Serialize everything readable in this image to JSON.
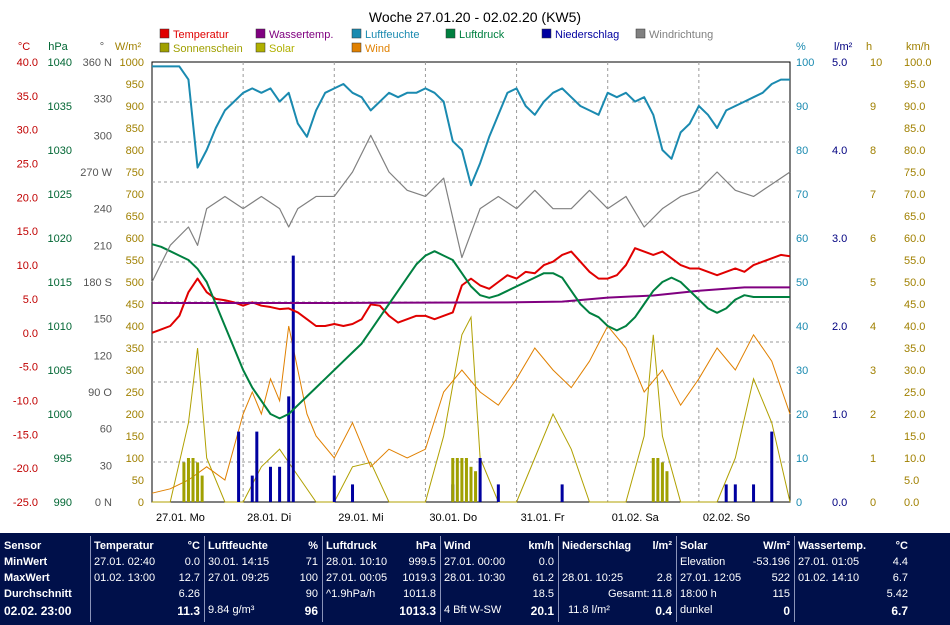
{
  "chart_data": {
    "type": "line",
    "title": "Woche 27.01.20 - 02.02.20 (KW5)",
    "x_labels": [
      "27.01. Mo",
      "28.01. Di",
      "29.01. Mi",
      "30.01. Do",
      "31.01. Fr",
      "01.02. Sa",
      "02.02. So"
    ],
    "grid": true,
    "axes": [
      {
        "id": "temp",
        "unit": "°C",
        "color": "#c00000",
        "range": [
          -25,
          40
        ],
        "ticks": [
          "40.0",
          "35.0",
          "30.0",
          "25.0",
          "20.0",
          "15.0",
          "10.0",
          "5.0",
          "0.0",
          "-5.0",
          "-10.0",
          "-15.0",
          "-20.0",
          "-25.0"
        ]
      },
      {
        "id": "press",
        "unit": "hPa",
        "color": "#006633",
        "range": [
          990,
          1040
        ],
        "ticks": [
          "1040",
          "1035",
          "1030",
          "1025",
          "1020",
          "1015",
          "1010",
          "1005",
          "1000",
          "995",
          "990"
        ]
      },
      {
        "id": "dir",
        "unit": "°",
        "color": "#555555",
        "range": [
          0,
          360
        ],
        "ticks": [
          "360 N",
          "330",
          "300",
          "270 W",
          "240",
          "210",
          "180 S",
          "150",
          "120",
          "90 O",
          "60",
          "30",
          "0 N"
        ]
      },
      {
        "id": "rad",
        "unit": "W/m²",
        "color": "#a08000",
        "range": [
          0,
          1000
        ],
        "ticks": [
          "1000",
          "950",
          "900",
          "850",
          "800",
          "750",
          "700",
          "650",
          "600",
          "550",
          "500",
          "450",
          "400",
          "350",
          "300",
          "250",
          "200",
          "150",
          "100",
          "50",
          "0"
        ]
      },
      {
        "id": "hum",
        "unit": "%",
        "color": "#1a8ab0",
        "range": [
          0,
          100
        ],
        "ticks": [
          "100",
          "90",
          "80",
          "70",
          "60",
          "50",
          "40",
          "30",
          "20",
          "10",
          "0"
        ]
      },
      {
        "id": "rain",
        "unit": "l/m²",
        "color": "#000080",
        "range": [
          0,
          5
        ],
        "ticks": [
          "5.0",
          "4.0",
          "3.0",
          "2.0",
          "1.0",
          "0.0"
        ]
      },
      {
        "id": "sun",
        "unit": "h",
        "color": "#a08000",
        "range": [
          0,
          10
        ],
        "ticks": [
          "10",
          "9",
          "8",
          "7",
          "6",
          "5",
          "4",
          "3",
          "2",
          "1",
          "0"
        ]
      },
      {
        "id": "wind",
        "unit": "km/h",
        "color": "#a08000",
        "range": [
          0,
          100
        ],
        "ticks": [
          "100.0",
          "95.0",
          "90.0",
          "85.0",
          "80.0",
          "75.0",
          "70.0",
          "65.0",
          "60.0",
          "55.0",
          "50.0",
          "45.0",
          "40.0",
          "35.0",
          "30.0",
          "25.0",
          "20.0",
          "15.0",
          "10.0",
          "5.0",
          "0.0"
        ]
      }
    ],
    "legend": [
      {
        "name": "Temperatur",
        "color": "#e00000"
      },
      {
        "name": "Wassertemp.",
        "color": "#800080"
      },
      {
        "name": "Luftfeuchte",
        "color": "#1a8ab0"
      },
      {
        "name": "Luftdruck",
        "color": "#008040"
      },
      {
        "name": "Niederschlag",
        "color": "#0000a0"
      },
      {
        "name": "Windrichtung",
        "color": "#808080"
      },
      {
        "name": "Sonnenschein",
        "color": "#a0a000"
      },
      {
        "name": "Solar",
        "color": "#b0b000"
      },
      {
        "name": "Wind",
        "color": "#e08000"
      }
    ],
    "series": [
      {
        "name": "Temperatur",
        "axis": "temp",
        "color": "#e00000",
        "x": [
          0,
          0.1,
          0.2,
          0.3,
          0.4,
          0.5,
          0.6,
          0.7,
          0.8,
          0.9,
          1.0,
          1.1,
          1.2,
          1.3,
          1.4,
          1.5,
          1.6,
          1.7,
          1.8,
          1.9,
          2.0,
          2.1,
          2.2,
          2.3,
          2.4,
          2.5,
          2.6,
          2.7,
          2.8,
          2.9,
          3.0,
          3.1,
          3.2,
          3.3,
          3.4,
          3.5,
          3.6,
          3.7,
          3.8,
          3.9,
          4.0,
          4.1,
          4.2,
          4.3,
          4.4,
          4.5,
          4.6,
          4.7,
          4.8,
          4.9,
          5.0,
          5.1,
          5.2,
          5.3,
          5.4,
          5.5,
          5.6,
          5.7,
          5.8,
          5.9,
          6.0,
          6.1,
          6.2,
          6.3,
          6.4,
          6.5,
          6.6,
          6.7,
          6.8,
          6.9,
          7.0
        ],
        "y": [
          0.0,
          0.5,
          1.0,
          2.5,
          6.0,
          8.0,
          6.0,
          5.0,
          4.8,
          4.5,
          4.0,
          4.5,
          4.0,
          3.8,
          3.5,
          3.6,
          3.0,
          2.0,
          1.0,
          1.0,
          1.3,
          1.0,
          1.3,
          2.0,
          4.2,
          4.0,
          2.5,
          1.5,
          2.0,
          2.5,
          2.5,
          2.0,
          2.5,
          3.0,
          7.0,
          8.0,
          7.0,
          6.5,
          7.5,
          8.5,
          8.0,
          9.0,
          8.8,
          10.0,
          10.5,
          11.5,
          12.0,
          10.5,
          9.0,
          8.0,
          8.0,
          8.5,
          10.0,
          12.5,
          12.0,
          11.5,
          12.0,
          11.0,
          10.0,
          9.5,
          9.5,
          9.0,
          8.5,
          9.0,
          9.5,
          9.0,
          10.0,
          10.5,
          11.0,
          11.5,
          11.3
        ]
      },
      {
        "name": "Wassertemp.",
        "axis": "temp",
        "color": "#800080",
        "x": [
          0,
          2.0,
          4.0,
          4.5,
          5.0,
          5.5,
          6.0,
          6.5,
          7.0
        ],
        "y": [
          4.4,
          4.4,
          4.5,
          4.6,
          5.2,
          5.5,
          6.2,
          6.7,
          6.7
        ]
      },
      {
        "name": "Luftfeuchte",
        "axis": "hum",
        "color": "#1a8ab0",
        "x": [
          0,
          0.1,
          0.2,
          0.3,
          0.4,
          0.5,
          0.6,
          0.7,
          0.8,
          0.9,
          1.0,
          1.1,
          1.2,
          1.3,
          1.4,
          1.5,
          1.6,
          1.7,
          1.8,
          1.9,
          2.0,
          2.1,
          2.2,
          2.3,
          2.4,
          2.5,
          2.6,
          2.7,
          2.8,
          2.9,
          3.0,
          3.1,
          3.2,
          3.3,
          3.4,
          3.5,
          3.6,
          3.7,
          3.8,
          3.9,
          4.0,
          4.1,
          4.2,
          4.3,
          4.4,
          4.5,
          4.6,
          4.7,
          4.8,
          4.9,
          5.0,
          5.1,
          5.2,
          5.3,
          5.4,
          5.5,
          5.6,
          5.7,
          5.8,
          5.9,
          6.0,
          6.1,
          6.2,
          6.3,
          6.4,
          6.5,
          6.6,
          6.7,
          6.8,
          6.9,
          7.0
        ],
        "y": [
          99,
          99,
          99,
          99,
          96,
          76,
          80,
          85,
          89,
          91,
          93,
          94,
          93,
          94,
          91,
          93,
          86,
          83,
          89,
          93,
          94,
          95,
          93,
          92,
          89,
          91,
          93,
          92,
          93,
          93,
          94,
          93,
          91,
          82,
          80,
          72,
          77,
          83,
          88,
          93,
          94,
          90,
          88,
          91,
          93,
          94,
          92,
          90,
          89,
          88,
          93,
          92,
          93,
          91,
          92,
          88,
          80,
          78,
          84,
          86,
          90,
          88,
          85,
          89,
          90,
          91,
          92,
          93,
          95,
          96,
          96
        ]
      },
      {
        "name": "Luftdruck",
        "axis": "press",
        "color": "#008040",
        "x": [
          0,
          0.1,
          0.2,
          0.3,
          0.4,
          0.5,
          0.6,
          0.7,
          0.8,
          0.9,
          1.0,
          1.1,
          1.2,
          1.3,
          1.4,
          1.5,
          1.6,
          1.7,
          1.8,
          1.9,
          2.0,
          2.1,
          2.2,
          2.3,
          2.4,
          2.5,
          2.6,
          2.7,
          2.8,
          2.9,
          3.0,
          3.1,
          3.2,
          3.3,
          3.4,
          3.5,
          3.6,
          3.7,
          3.8,
          3.9,
          4.0,
          4.1,
          4.2,
          4.3,
          4.4,
          4.5,
          4.6,
          4.7,
          4.8,
          4.9,
          5.0,
          5.1,
          5.2,
          5.3,
          5.4,
          5.5,
          5.6,
          5.7,
          5.8,
          5.9,
          6.0,
          6.1,
          6.2,
          6.3,
          6.4,
          6.5,
          6.6,
          6.7,
          6.8,
          6.9,
          7.0
        ],
        "y": [
          1019.3,
          1019,
          1018.5,
          1018,
          1017.5,
          1016.5,
          1015,
          1012.5,
          1010,
          1007.5,
          1005,
          1003,
          1001.5,
          1000,
          999.5,
          1000,
          1001,
          1002,
          1003,
          1004,
          1005,
          1006,
          1007,
          1008,
          1009.5,
          1011,
          1012.5,
          1014,
          1015.5,
          1017,
          1018,
          1018.5,
          1018,
          1017.5,
          1016,
          1014.5,
          1013.5,
          1013.2,
          1013.5,
          1014,
          1014.5,
          1015,
          1015.5,
          1016,
          1016,
          1015.5,
          1014,
          1012.5,
          1011.5,
          1011,
          1010,
          1009.5,
          1010,
          1011,
          1012.5,
          1014,
          1015,
          1015.5,
          1015,
          1014,
          1013,
          1012,
          1011.5,
          1012,
          1013,
          1013.5,
          1013.3,
          1013.3,
          1013.3,
          1013.3,
          1013.3
        ]
      },
      {
        "name": "Windrichtung",
        "axis": "dir",
        "color": "#808080",
        "x": [
          0,
          0.2,
          0.4,
          0.5,
          0.6,
          0.8,
          1.0,
          1.2,
          1.4,
          1.5,
          1.6,
          1.8,
          2.0,
          2.2,
          2.4,
          2.6,
          2.8,
          3.0,
          3.2,
          3.4,
          3.6,
          3.8,
          4.0,
          4.2,
          4.4,
          4.6,
          4.8,
          5.0,
          5.2,
          5.4,
          5.6,
          5.8,
          6.0,
          6.2,
          6.4,
          6.6,
          6.8,
          7.0
        ],
        "y": [
          180,
          210,
          225,
          210,
          240,
          250,
          240,
          250,
          240,
          225,
          240,
          250,
          250,
          270,
          300,
          270,
          255,
          250,
          265,
          200,
          240,
          250,
          240,
          255,
          240,
          240,
          255,
          240,
          250,
          225,
          240,
          250,
          255,
          270,
          255,
          250,
          260,
          270
        ]
      }
    ],
    "bars": [
      {
        "name": "Niederschlag",
        "axis": "rain",
        "color": "#0000a0",
        "x": [
          0.95,
          1.1,
          1.15,
          1.3,
          1.4,
          1.5,
          1.55,
          2.0,
          2.2,
          3.3,
          3.6,
          3.8,
          4.5,
          6.3,
          6.4,
          6.6,
          6.8
        ],
        "y": [
          0.8,
          0.3,
          0.8,
          0.4,
          0.4,
          1.2,
          2.8,
          0.3,
          0.2,
          0.2,
          0.5,
          0.2,
          0.2,
          0.2,
          0.2,
          0.2,
          0.8
        ]
      },
      {
        "name": "Sonnenschein",
        "axis": "sun",
        "color": "#a0a000",
        "x": [
          0.35,
          0.4,
          0.45,
          0.5,
          0.55,
          3.3,
          3.35,
          3.4,
          3.45,
          3.5,
          3.55,
          5.5,
          5.55,
          5.6,
          5.65
        ],
        "y": [
          0.9,
          1.0,
          1.0,
          0.9,
          0.6,
          1.0,
          1.0,
          1.0,
          1.0,
          0.8,
          0.7,
          1.0,
          1.0,
          0.9,
          0.7
        ]
      }
    ],
    "solar": {
      "name": "Solar",
      "axis": "rad",
      "color": "#b0a000",
      "x": [
        0,
        0.2,
        0.4,
        0.5,
        0.6,
        0.8,
        1.0,
        1.2,
        1.4,
        1.6,
        1.8,
        2.0,
        2.2,
        2.4,
        2.6,
        2.8,
        3.0,
        3.2,
        3.4,
        3.5,
        3.6,
        3.8,
        4.0,
        4.2,
        4.4,
        4.6,
        4.8,
        5.0,
        5.2,
        5.4,
        5.5,
        5.6,
        5.8,
        6.0,
        6.2,
        6.4,
        6.6,
        6.8,
        7.0
      ],
      "y": [
        0,
        0,
        180,
        350,
        100,
        0,
        0,
        80,
        120,
        60,
        0,
        0,
        80,
        90,
        0,
        0,
        0,
        150,
        380,
        420,
        100,
        0,
        0,
        100,
        200,
        120,
        0,
        0,
        0,
        150,
        380,
        150,
        0,
        0,
        0,
        100,
        280,
        180,
        0
      ]
    },
    "wind": {
      "name": "Wind",
      "axis": "wind",
      "color": "#e08000",
      "x": [
        0,
        0.2,
        0.4,
        0.6,
        0.8,
        1.0,
        1.1,
        1.2,
        1.3,
        1.4,
        1.5,
        1.6,
        1.7,
        1.8,
        2.0,
        2.2,
        2.4,
        2.6,
        2.8,
        3.0,
        3.2,
        3.4,
        3.6,
        3.8,
        4.0,
        4.2,
        4.4,
        4.6,
        4.8,
        5.0,
        5.2,
        5.4,
        5.6,
        5.8,
        6.0,
        6.2,
        6.4,
        6.6,
        6.8,
        7.0
      ],
      "y": [
        2,
        3,
        5,
        8,
        5,
        20,
        25,
        20,
        28,
        23,
        40,
        30,
        20,
        15,
        10,
        18,
        8,
        12,
        10,
        12,
        25,
        30,
        25,
        22,
        28,
        35,
        30,
        26,
        32,
        40,
        35,
        25,
        30,
        22,
        28,
        35,
        30,
        38,
        32,
        20
      ]
    }
  },
  "stats": {
    "sensor": {
      "header": "Sensor",
      "min": "MinWert",
      "max": "MaxWert",
      "avg": "Durchschnitt",
      "current": "02.02. 23:00"
    },
    "temperature": {
      "header": "Temperatur",
      "unit": "°C",
      "min_time": "27.01. 02:40",
      "min_val": "0.0",
      "max_time": "01.02. 13:00",
      "max_val": "12.7",
      "avg": "6.26",
      "current": "11.3"
    },
    "humidity": {
      "header": "Luftfeuchte",
      "unit": "%",
      "min_time": "30.01. 14:15",
      "min_val": "71",
      "max_time": "27.01. 09:25",
      "max_val": "100",
      "avg": "90",
      "abs": "9.84 g/m³",
      "current": "96"
    },
    "pressure": {
      "header": "Luftdruck",
      "unit": "hPa",
      "min_time": "28.01. 10:10",
      "min_val": "999.5",
      "max_time": "27.01. 00:05",
      "max_val": "1019.3",
      "trend": "^1.9hPa/h",
      "avg": "1011.8",
      "current": "1013.3"
    },
    "wind": {
      "header": "Wind",
      "unit": "km/h",
      "min_time": "27.01. 00:00",
      "min_val": "0.0",
      "max_time": "28.01. 10:30",
      "max_val": "61.2",
      "avg": "18.5",
      "bft": "4 Bft W-SW",
      "current": "20.1"
    },
    "rain": {
      "header": "Niederschlag",
      "unit": "l/m²",
      "max_time": "28.01. 10:25",
      "max_val": "2.8",
      "total_label": "Gesamt:",
      "total": "11.8",
      "rate": "11.8 l/m²",
      "current": "0.4"
    },
    "solar": {
      "header": "Solar",
      "unit": "W/m²",
      "elev_label": "Elevation",
      "elev": "-53.196",
      "max_time": "27.01. 12:05",
      "max_val": "522",
      "hours": "18:00 h",
      "hours_val": "115",
      "state": "dunkel",
      "current": "0"
    },
    "water": {
      "header": "Wassertemp.",
      "unit": "°C",
      "min_time": "27.01. 01:05",
      "min_val": "4.4",
      "max_time": "01.02. 14:10",
      "max_val": "6.7",
      "avg": "5.42",
      "current": "6.7"
    }
  }
}
